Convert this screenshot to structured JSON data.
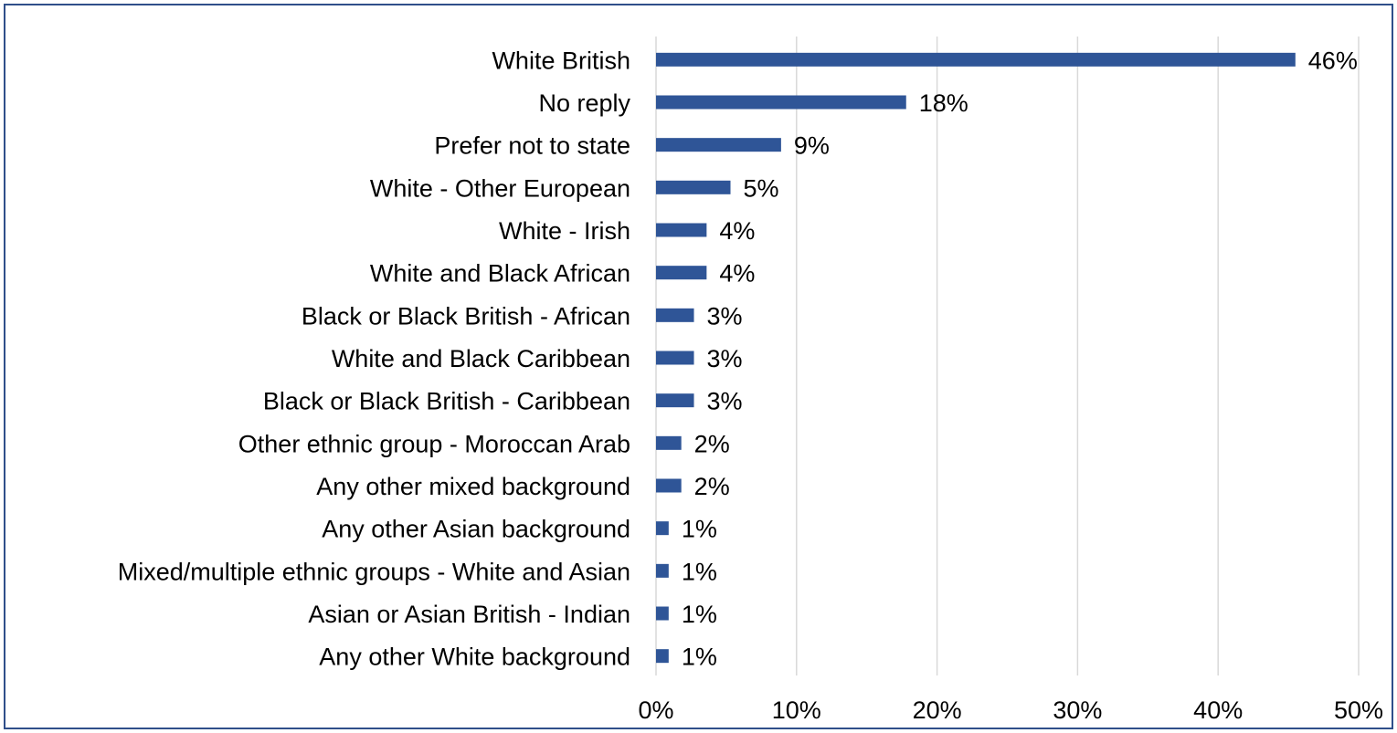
{
  "chart_data": {
    "type": "bar",
    "orientation": "horizontal",
    "categories": [
      "White British",
      "No reply",
      "Prefer not to state",
      "White - Other European",
      "White - Irish",
      "White and Black African",
      "Black or Black British - African",
      "White and Black Caribbean",
      "Black or Black British - Caribbean",
      "Other ethnic group - Moroccan Arab",
      "Any other mixed background",
      "Any other Asian background",
      "Mixed/multiple ethnic groups - White and Asian",
      "Asian or Asian British - Indian",
      "Any other White background"
    ],
    "values": [
      45.5,
      17.8,
      8.9,
      5.3,
      3.6,
      3.6,
      2.7,
      2.7,
      2.7,
      1.8,
      1.8,
      0.9,
      0.9,
      0.9,
      0.9
    ],
    "value_labels": [
      "46%",
      "18%",
      "9%",
      "5%",
      "4%",
      "4%",
      "3%",
      "3%",
      "3%",
      "2%",
      "2%",
      "1%",
      "1%",
      "1%",
      "1%"
    ],
    "xlim": [
      0,
      50
    ],
    "x_ticks": [
      0,
      10,
      20,
      30,
      40,
      50
    ],
    "x_tick_labels": [
      "0%",
      "10%",
      "20%",
      "30%",
      "40%",
      "50%"
    ],
    "grid": "vertical",
    "legend": "none",
    "bar_color": "#2f5597",
    "grid_color": "#d9d9d9",
    "frame_color": "#2f4f8a",
    "title": "",
    "xlabel": "",
    "ylabel": ""
  }
}
